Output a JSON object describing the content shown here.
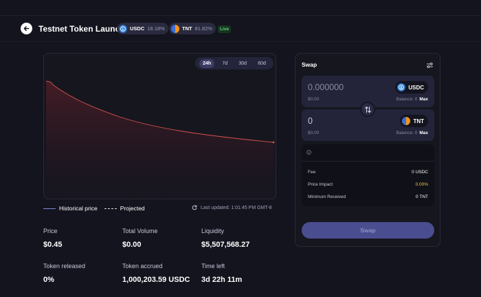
{
  "header": {
    "title": "Testnet Token Launch",
    "tokens": [
      {
        "symbol": "USDC",
        "share": "18.18%"
      },
      {
        "symbol": "TNT",
        "share": "81.82%"
      }
    ],
    "status": "Live"
  },
  "chart": {
    "ranges": [
      "24h",
      "7d",
      "30d",
      "60d"
    ],
    "active_range": "24h",
    "legend": {
      "historical": "Historical price",
      "projected": "Projected"
    },
    "last_updated": "Last updated: 1:01:45 PM GMT-8",
    "line_color": "#d9534f"
  },
  "stats": {
    "price": {
      "label": "Price",
      "value": "$0.45"
    },
    "total_volume": {
      "label": "Total Volume",
      "value": "$0.00"
    },
    "liquidity": {
      "label": "Liquidity",
      "value": "$5,507,568.27"
    },
    "token_released": {
      "label": "Token released",
      "value": "0%"
    },
    "token_accrued": {
      "label": "Token accrued",
      "value": "1,000,203.59 USDC"
    },
    "time_left": {
      "label": "Time left",
      "value": "3d 22h 11m"
    }
  },
  "swap": {
    "title": "Swap",
    "from": {
      "amount_placeholder": "0.000000",
      "usd": "$0.00",
      "token": "USDC",
      "balance": "Balance: 0",
      "max": "Max"
    },
    "to": {
      "amount": "0",
      "usd": "$0.00",
      "token": "TNT",
      "balance": "Balance: 0",
      "max": "Max"
    },
    "details": {
      "fee_label": "Fee",
      "fee_value": "0 USDC",
      "impact_label": "Price Impact",
      "impact_value": "0.00%",
      "min_label": "Minimum Received",
      "min_value": "0 TNT"
    },
    "button_label": "Swap"
  },
  "colors": {
    "accent": "#4a4d8f",
    "live": "#5fd37a",
    "warn": "#f2c94c",
    "usdc": "#2775ca",
    "tnt": "#f7931a"
  }
}
